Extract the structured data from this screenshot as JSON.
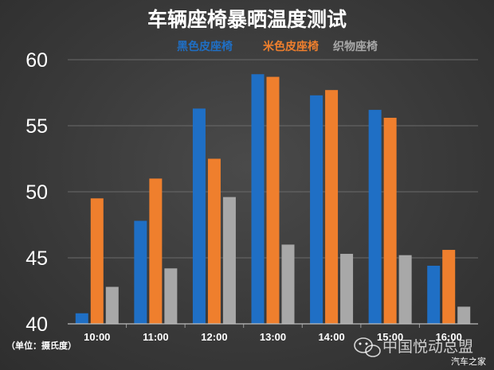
{
  "chart_data": {
    "type": "bar",
    "title": "车辆座椅暴晒温度测试",
    "categories": [
      "10:00",
      "11:00",
      "12:00",
      "13:00",
      "14:00",
      "15:00",
      "16:00"
    ],
    "series": [
      {
        "name": "黑色皮座椅",
        "color": "#1f6fc5",
        "values": [
          40.8,
          47.8,
          56.3,
          58.9,
          57.3,
          56.2,
          44.4
        ]
      },
      {
        "name": "米色皮座椅",
        "color": "#ef7f2d",
        "values": [
          49.5,
          51.0,
          52.5,
          58.7,
          57.7,
          55.6,
          45.6
        ]
      },
      {
        "name": "织物座椅",
        "color": "#a8a8a8",
        "values": [
          42.8,
          44.2,
          49.6,
          46.0,
          45.3,
          45.2,
          41.3
        ]
      }
    ],
    "ylim": [
      40,
      60
    ],
    "yticks": [
      40,
      45,
      50,
      55,
      60
    ],
    "grid": true,
    "legend": "top-right",
    "unit_note": "（单位：摄氏度）"
  },
  "watermark": {
    "icon": "wechat-icon",
    "text": "中国悦动总盟",
    "brand": "汽车之家"
  }
}
